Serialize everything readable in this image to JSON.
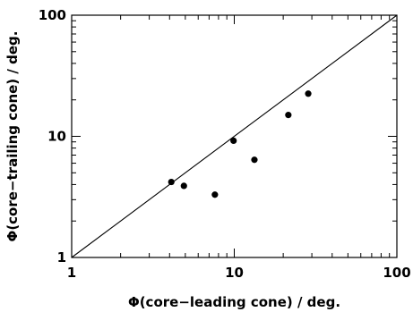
{
  "chart_data": {
    "type": "scatter",
    "xlabel": "Φ(core−leading cone) / deg.",
    "ylabel": "Φ(core−trailing cone) / deg.",
    "xscale": "log",
    "yscale": "log",
    "xlim": [
      1,
      100
    ],
    "ylim": [
      1,
      100
    ],
    "x_tick_labels": [
      "1",
      "10",
      "100"
    ],
    "y_tick_labels": [
      "1",
      "10",
      "100"
    ],
    "grid": false,
    "reference_line": {
      "type": "y=x",
      "from": [
        1,
        1
      ],
      "to": [
        100,
        100
      ]
    },
    "series": [
      {
        "points": [
          {
            "x": 4.1,
            "y": 4.2
          },
          {
            "x": 4.9,
            "y": 3.9
          },
          {
            "x": 7.6,
            "y": 3.3
          },
          {
            "x": 9.9,
            "y": 9.2
          },
          {
            "x": 13.3,
            "y": 6.4
          },
          {
            "x": 21.5,
            "y": 15.0
          },
          {
            "x": 28.5,
            "y": 22.5
          }
        ]
      }
    ]
  }
}
